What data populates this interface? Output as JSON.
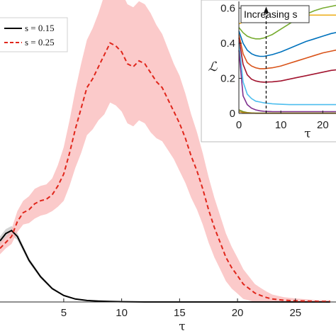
{
  "chart_data": [
    {
      "type": "line",
      "title": "",
      "xlabel": "τ",
      "ylabel": "",
      "xlim": [
        -0.5,
        28.5
      ],
      "ylim": [
        0,
        1
      ],
      "xticks": [
        5,
        10,
        15,
        20,
        25
      ],
      "legend": {
        "placement": "top-left"
      },
      "series": [
        {
          "name": "s = 0.15",
          "style": "solid",
          "color": "#000000",
          "band_color": "#b0b0b0",
          "x": [
            -0.5,
            0,
            0.5,
            1,
            1.5,
            2,
            3,
            4,
            5,
            6,
            7,
            8,
            9,
            10,
            12,
            14,
            16,
            18,
            20,
            22,
            24,
            26,
            28
          ],
          "y": [
            0.205,
            0.23,
            0.24,
            0.22,
            0.18,
            0.14,
            0.085,
            0.045,
            0.022,
            0.01,
            0.005,
            0.003,
            0.002,
            0.001,
            0.0,
            0.0,
            0.0,
            0.0,
            0.0,
            0.0,
            0.0,
            0.0,
            0.0
          ],
          "band": [
            0.015,
            0.015,
            0.015,
            0.012,
            0.01,
            0.008,
            0.006,
            0.004,
            0.003,
            0.002,
            0.001,
            0.001,
            0.001,
            0.001,
            0,
            0,
            0,
            0,
            0,
            0,
            0,
            0,
            0
          ]
        },
        {
          "name": "s = 0.25",
          "style": "dashed",
          "color": "#e0261b",
          "band_color": "#f9b8b8",
          "x": [
            -0.5,
            0,
            0.5,
            1,
            1.5,
            2,
            2.5,
            3,
            3.5,
            4,
            4.5,
            5,
            5.5,
            6,
            6.5,
            7,
            7.5,
            8,
            8.5,
            9,
            9.5,
            10,
            10.5,
            11,
            11.5,
            12,
            12.5,
            13,
            13.5,
            14,
            14.5,
            15,
            15.5,
            16,
            16.5,
            17,
            17.5,
            18,
            18.5,
            19,
            19.5,
            20,
            20.5,
            21,
            21.5,
            22,
            22.5,
            23,
            24,
            25,
            26,
            27,
            28
          ],
          "y": [
            0.18,
            0.2,
            0.22,
            0.27,
            0.3,
            0.31,
            0.33,
            0.34,
            0.345,
            0.36,
            0.39,
            0.43,
            0.5,
            0.58,
            0.65,
            0.72,
            0.75,
            0.79,
            0.83,
            0.87,
            0.86,
            0.84,
            0.8,
            0.79,
            0.81,
            0.8,
            0.77,
            0.74,
            0.72,
            0.68,
            0.64,
            0.6,
            0.55,
            0.49,
            0.44,
            0.38,
            0.31,
            0.25,
            0.2,
            0.15,
            0.115,
            0.088,
            0.06,
            0.045,
            0.03,
            0.022,
            0.015,
            0.01,
            0.006,
            0.004,
            0.003,
            0.002,
            0.002
          ],
          "band": [
            0.02,
            0.02,
            0.025,
            0.035,
            0.04,
            0.045,
            0.05,
            0.05,
            0.05,
            0.055,
            0.07,
            0.09,
            0.11,
            0.13,
            0.15,
            0.16,
            0.17,
            0.18,
            0.2,
            0.2,
            0.2,
            0.2,
            0.2,
            0.2,
            0.2,
            0.2,
            0.2,
            0.19,
            0.18,
            0.17,
            0.16,
            0.16,
            0.15,
            0.14,
            0.13,
            0.12,
            0.11,
            0.1,
            0.09,
            0.08,
            0.07,
            0.06,
            0.05,
            0.04,
            0.03,
            0.025,
            0.02,
            0.015,
            0.01,
            0.008,
            0.006,
            0.004,
            0.004
          ]
        }
      ]
    },
    {
      "type": "line",
      "title": "",
      "xlabel": "τ",
      "ylabel": "ℒ",
      "xlim": [
        -1,
        25
      ],
      "ylim": [
        -0.02,
        0.65
      ],
      "xticks": [
        0,
        10,
        20
      ],
      "yticks": [
        0,
        0.2,
        0.4,
        0.6
      ],
      "tick_labels_x": [
        "0",
        "10",
        "20"
      ],
      "tick_labels_y": [
        "0",
        "0.2",
        "0.4",
        "0.6"
      ],
      "annotation": {
        "text": "Increasing s",
        "arrow_x": 6.5,
        "arrow_from": 0.0,
        "arrow_to": 0.6
      },
      "series": [
        {
          "color": "#edb120",
          "x": [
            0,
            1,
            2,
            3,
            4,
            5,
            6,
            8,
            10,
            12,
            14,
            16,
            18,
            20,
            22,
            24,
            25
          ],
          "y": [
            0.51,
            0.52,
            0.53,
            0.54,
            0.55,
            0.56,
            0.57,
            0.595,
            0.61,
            0.6,
            0.57,
            0.56,
            0.56,
            0.56,
            0.56,
            0.56,
            0.56
          ]
        },
        {
          "color": "#77ac30",
          "x": [
            0,
            1,
            2,
            3,
            4,
            5,
            6,
            8,
            10,
            12,
            14,
            16,
            18,
            20,
            22,
            24,
            25
          ],
          "y": [
            0.49,
            0.46,
            0.44,
            0.43,
            0.425,
            0.425,
            0.43,
            0.45,
            0.48,
            0.51,
            0.54,
            0.565,
            0.585,
            0.6,
            0.61,
            0.62,
            0.625
          ]
        },
        {
          "color": "#0072bd",
          "x": [
            0,
            1,
            2,
            3,
            4,
            5,
            6,
            8,
            10,
            12,
            14,
            16,
            18,
            20,
            22,
            24,
            25
          ],
          "y": [
            0.47,
            0.4,
            0.36,
            0.34,
            0.33,
            0.325,
            0.325,
            0.335,
            0.35,
            0.37,
            0.39,
            0.41,
            0.425,
            0.44,
            0.455,
            0.465,
            0.47
          ]
        },
        {
          "color": "#d95319",
          "x": [
            0,
            1,
            2,
            3,
            4,
            5,
            6,
            8,
            10,
            12,
            14,
            16,
            18,
            20,
            22,
            24,
            25
          ],
          "y": [
            0.45,
            0.34,
            0.29,
            0.27,
            0.26,
            0.255,
            0.255,
            0.26,
            0.27,
            0.285,
            0.3,
            0.315,
            0.33,
            0.345,
            0.355,
            0.365,
            0.37
          ]
        },
        {
          "color": "#a2142f",
          "x": [
            0,
            1,
            2,
            3,
            4,
            5,
            6,
            8,
            10,
            12,
            14,
            16,
            18,
            20,
            22,
            24,
            25
          ],
          "y": [
            0.43,
            0.28,
            0.22,
            0.195,
            0.185,
            0.18,
            0.178,
            0.18,
            0.185,
            0.195,
            0.205,
            0.215,
            0.225,
            0.235,
            0.245,
            0.25,
            0.255
          ]
        },
        {
          "color": "#4dbeee",
          "x": [
            0,
            1,
            2,
            3,
            4,
            5,
            6,
            8,
            10,
            12,
            14,
            16,
            18,
            20,
            22,
            24,
            25
          ],
          "y": [
            0.4,
            0.18,
            0.11,
            0.085,
            0.07,
            0.065,
            0.06,
            0.055,
            0.052,
            0.05,
            0.05,
            0.05,
            0.05,
            0.05,
            0.05,
            0.05,
            0.05
          ]
        },
        {
          "color": "#7e2f8e",
          "x": [
            0,
            1,
            2,
            3,
            4,
            5,
            6,
            8,
            10,
            12,
            14,
            16,
            18,
            20,
            22,
            24,
            25
          ],
          "y": [
            0.36,
            0.1,
            0.05,
            0.03,
            0.02,
            0.015,
            0.012,
            0.01,
            0.01,
            0.01,
            0.01,
            0.01,
            0.01,
            0.01,
            0.01,
            0.01,
            0.01
          ]
        },
        {
          "color": "#6f8f1f",
          "x": [
            0,
            1,
            2,
            3,
            4,
            5,
            6,
            8,
            10,
            12,
            14,
            16,
            18,
            20,
            22,
            24,
            25
          ],
          "y": [
            0.02,
            0.01,
            0.005,
            0.003,
            0.002,
            0.002,
            0.002,
            0.002,
            0.002,
            0.002,
            0.002,
            0.002,
            0.002,
            0.002,
            0.002,
            0.002,
            0.002
          ]
        },
        {
          "color": "#c48b1a",
          "x": [
            0,
            1,
            2,
            3,
            4,
            5,
            6,
            8,
            10,
            12,
            14,
            16,
            18,
            20,
            22,
            24,
            25
          ],
          "y": [
            0.01,
            0.005,
            0.003,
            0.002,
            0.001,
            0.001,
            0.001,
            0.001,
            0.001,
            0.001,
            0.001,
            0.001,
            0.001,
            0.001,
            0.001,
            0.001,
            0.001
          ]
        }
      ]
    }
  ]
}
